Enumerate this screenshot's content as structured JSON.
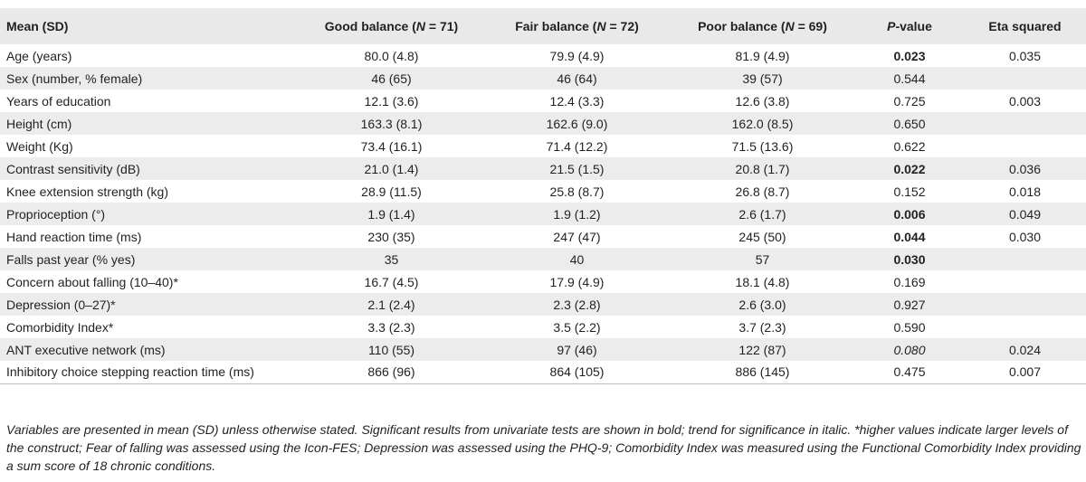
{
  "header": {
    "col0": "Mean (SD)",
    "col1": {
      "pre": "Good balance (",
      "n": "N",
      "post": " = 71)"
    },
    "col2": {
      "pre": "Fair balance (",
      "n": "N",
      "post": " = 72)"
    },
    "col3": {
      "pre": "Poor balance (",
      "n": "N",
      "post": " = 69)"
    },
    "col4": {
      "p": "P",
      "post": "-value"
    },
    "col5": "Eta squared"
  },
  "rows": [
    {
      "label": "Age (years)",
      "good": "80.0 (4.8)",
      "fair": "79.9 (4.9)",
      "poor": "81.9 (4.9)",
      "p": "0.023",
      "p_style": "bold",
      "eta": "0.035"
    },
    {
      "label": "Sex (number, % female)",
      "good": "46 (65)",
      "fair": "46 (64)",
      "poor": "39 (57)",
      "p": "0.544",
      "p_style": "normal",
      "eta": ""
    },
    {
      "label": "Years of education",
      "good": "12.1 (3.6)",
      "fair": "12.4 (3.3)",
      "poor": "12.6 (3.8)",
      "p": "0.725",
      "p_style": "normal",
      "eta": "0.003"
    },
    {
      "label": "Height (cm)",
      "good": "163.3 (8.1)",
      "fair": "162.6 (9.0)",
      "poor": "162.0 (8.5)",
      "p": "0.650",
      "p_style": "normal",
      "eta": ""
    },
    {
      "label": "Weight (Kg)",
      "good": "73.4 (16.1)",
      "fair": "71.4 (12.2)",
      "poor": "71.5 (13.6)",
      "p": "0.622",
      "p_style": "normal",
      "eta": ""
    },
    {
      "label": "Contrast sensitivity (dB)",
      "good": "21.0 (1.4)",
      "fair": "21.5 (1.5)",
      "poor": "20.8 (1.7)",
      "p": "0.022",
      "p_style": "bold",
      "eta": "0.036"
    },
    {
      "label": "Knee extension strength (kg)",
      "good": "28.9 (11.5)",
      "fair": "25.8 (8.7)",
      "poor": "26.8 (8.7)",
      "p": "0.152",
      "p_style": "normal",
      "eta": "0.018"
    },
    {
      "label": "Proprioception (°)",
      "good": "1.9 (1.4)",
      "fair": "1.9 (1.2)",
      "poor": "2.6 (1.7)",
      "p": "0.006",
      "p_style": "bold",
      "eta": "0.049"
    },
    {
      "label": "Hand reaction time (ms)",
      "good": "230 (35)",
      "fair": "247 (47)",
      "poor": "245 (50)",
      "p": "0.044",
      "p_style": "bold",
      "eta": "0.030"
    },
    {
      "label": "Falls past year (% yes)",
      "good": "35",
      "fair": "40",
      "poor": "57",
      "p": "0.030",
      "p_style": "bold",
      "eta": ""
    },
    {
      "label": "Concern about falling (10–40)*",
      "good": "16.7 (4.5)",
      "fair": "17.9 (4.9)",
      "poor": "18.1 (4.8)",
      "p": "0.169",
      "p_style": "normal",
      "eta": ""
    },
    {
      "label": "Depression (0–27)*",
      "good": "2.1 (2.4)",
      "fair": "2.3 (2.8)",
      "poor": "2.6 (3.0)",
      "p": "0.927",
      "p_style": "normal",
      "eta": ""
    },
    {
      "label": "Comorbidity Index*",
      "good": "3.3 (2.3)",
      "fair": "3.5 (2.2)",
      "poor": "3.7 (2.3)",
      "p": "0.590",
      "p_style": "normal",
      "eta": ""
    },
    {
      "label": "ANT executive network (ms)",
      "good": "110 (55)",
      "fair": "97 (46)",
      "poor": "122 (87)",
      "p": "0.080",
      "p_style": "italic",
      "eta": "0.024"
    },
    {
      "label": "Inhibitory choice stepping reaction time (ms)",
      "good": "866 (96)",
      "fair": "864 (105)",
      "poor": "886 (145)",
      "p": "0.475",
      "p_style": "normal",
      "eta": "0.007"
    }
  ],
  "footnote": "Variables are presented in mean (SD) unless otherwise stated. Significant results from univariate tests are shown in bold; trend for significance in italic. *higher values indicate larger levels of the construct; Fear of falling was assessed using the Icon-FES; Depression was assessed using the PHQ-9; Comorbidity Index was measured using the Functional Comorbidity Index providing a sum score of 18 chronic conditions."
}
